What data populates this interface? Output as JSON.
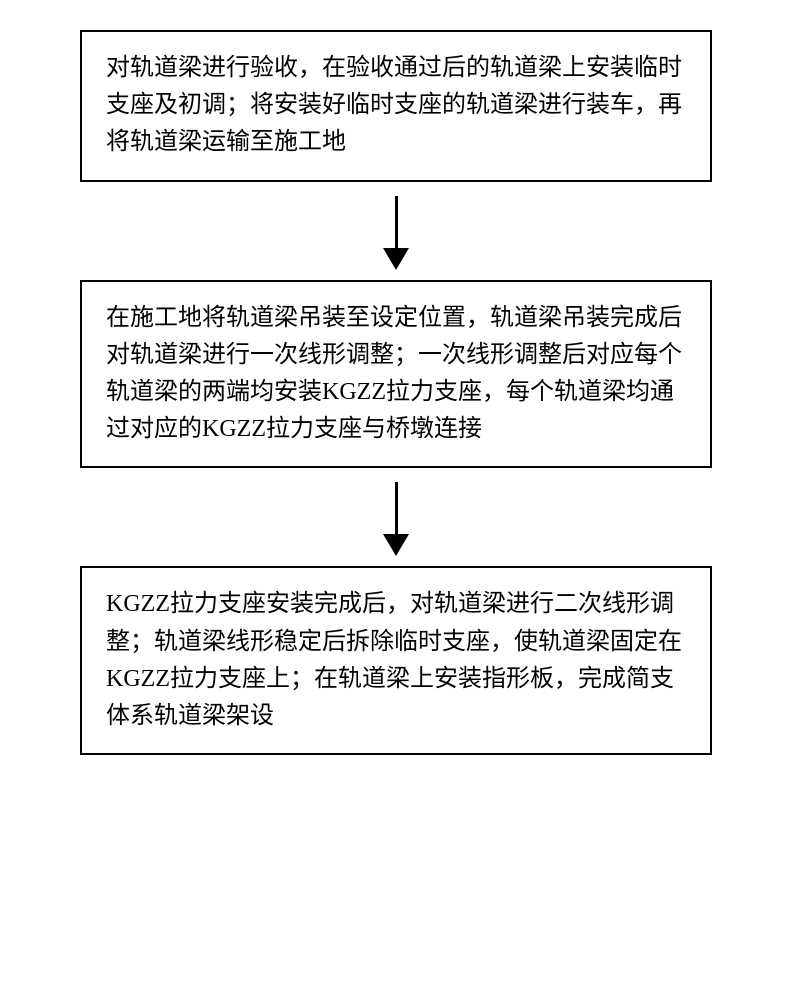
{
  "flowchart": {
    "type": "flowchart",
    "direction": "vertical",
    "background_color": "#ffffff",
    "box_border_color": "#000000",
    "box_border_width": 2,
    "text_color": "#000000",
    "font_size_pt": 18,
    "font_family": "SimSun",
    "arrow_color": "#000000",
    "arrow_line_width": 3,
    "arrow_line_length": 52,
    "arrow_head_width": 26,
    "arrow_head_height": 22,
    "line_height": 1.55,
    "nodes": [
      {
        "id": "step1",
        "text": "对轨道梁进行验收，在验收通过后的轨道梁上安装临时支座及初调；将安装好临时支座的轨道梁进行装车，再将轨道梁运输至施工地"
      },
      {
        "id": "step2",
        "text": "在施工地将轨道梁吊装至设定位置，轨道梁吊装完成后对轨道梁进行一次线形调整；一次线形调整后对应每个轨道梁的两端均安装KGZZ拉力支座，每个轨道梁均通过对应的KGZZ拉力支座与桥墩连接"
      },
      {
        "id": "step3",
        "text": "KGZZ拉力支座安装完成后，对轨道梁进行二次线形调整；轨道梁线形稳定后拆除临时支座，使轨道梁固定在KGZZ拉力支座上；在轨道梁上安装指形板，完成简支体系轨道梁架设"
      }
    ],
    "edges": [
      {
        "from": "step1",
        "to": "step2"
      },
      {
        "from": "step2",
        "to": "step3"
      }
    ]
  }
}
